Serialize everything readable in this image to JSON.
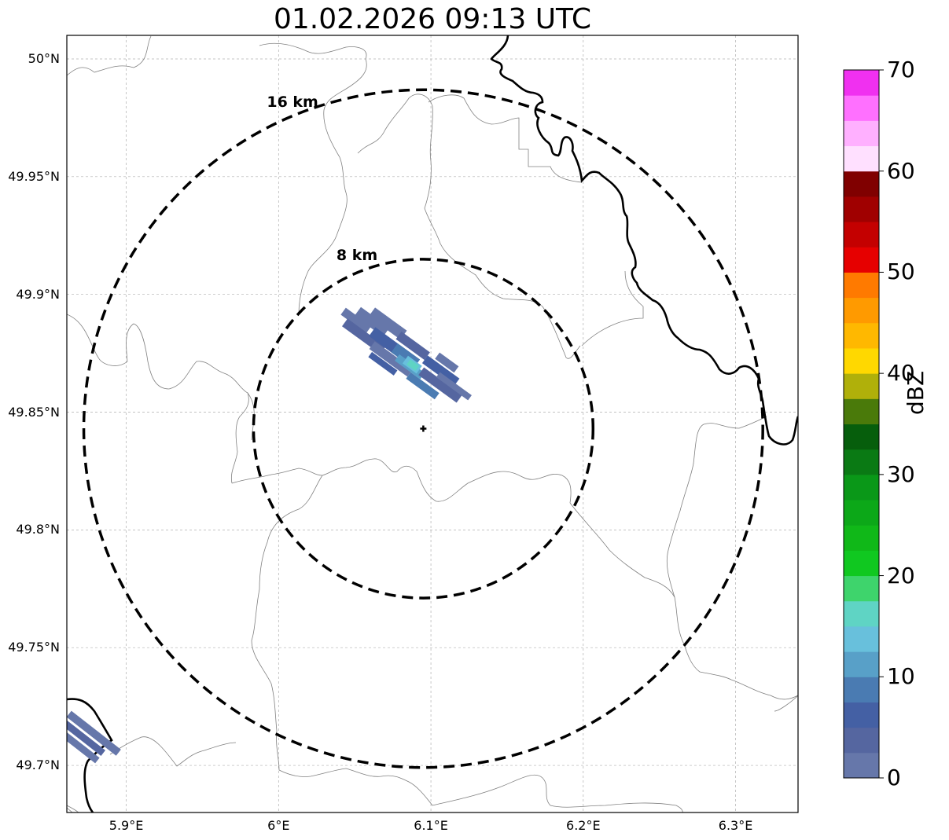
{
  "title": "01.02.2026 09:13 UTC",
  "radar_site": {
    "lon": 6.095,
    "lat": 49.843
  },
  "rings": [
    {
      "radius_km": 16,
      "label": "16 km"
    },
    {
      "radius_km": 8,
      "label": "8 km"
    }
  ],
  "lat_ticks": [
    {
      "value": 50.0,
      "label": "50°N"
    },
    {
      "value": 49.95,
      "label": "49.95°N"
    },
    {
      "value": 49.9,
      "label": "49.9°N"
    },
    {
      "value": 49.85,
      "label": "49.85°N"
    },
    {
      "value": 49.8,
      "label": "49.8°N"
    },
    {
      "value": 49.75,
      "label": "49.75°N"
    },
    {
      "value": 49.7,
      "label": "49.7°N"
    }
  ],
  "lon_ticks": [
    {
      "value": 5.9,
      "label": "5.9°E"
    },
    {
      "value": 6.0,
      "label": "6°E"
    },
    {
      "value": 6.1,
      "label": "6.1°E"
    },
    {
      "value": 6.2,
      "label": "6.2°E"
    },
    {
      "value": 6.3,
      "label": "6.3°E"
    }
  ],
  "extent": {
    "lon_min": 5.861,
    "lon_max": 6.341,
    "lat_min": 49.68,
    "lat_max": 50.01
  },
  "colorbar": {
    "label": "dBZ",
    "min": 0,
    "max": 70,
    "ticks": [
      "0",
      "10",
      "20",
      "30",
      "40",
      "50",
      "60",
      "70"
    ],
    "colors": [
      "#6677aa",
      "#5566a0",
      "#4460a4",
      "#4a7bb2",
      "#58a0c8",
      "#68c0dc",
      "#5fd4c4",
      "#3ed46c",
      "#10c820",
      "#10b818",
      "#0ca818",
      "#0a9818",
      "#0a7a14",
      "#065e0c",
      "#4a7a0a",
      "#b0b00a",
      "#ffd800",
      "#ffb800",
      "#ff9a00",
      "#ff7a00",
      "#e60000",
      "#c40000",
      "#a00000",
      "#800000",
      "#ffe0ff",
      "#ffb0ff",
      "#ff70ff",
      "#f030f0"
    ]
  }
}
